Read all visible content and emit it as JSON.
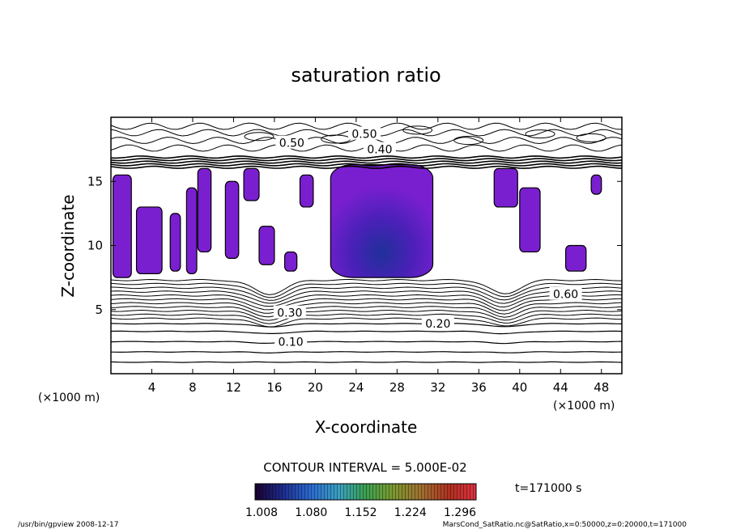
{
  "chart_data": {
    "type": "contour",
    "title": "saturation ratio",
    "xlabel": "X-coordinate",
    "ylabel": "Z-coordinate",
    "x_unit_left": "(×1000 m)",
    "x_unit_right": "(×1000 m)",
    "xlim": [
      0,
      50
    ],
    "ylim": [
      0,
      20
    ],
    "x_ticks": [
      4,
      8,
      12,
      16,
      20,
      24,
      28,
      32,
      36,
      40,
      44,
      48
    ],
    "y_ticks": [
      5,
      10,
      15
    ],
    "contour_interval": "CONTOUR INTERVAL = 5.000E-02",
    "contour_labels": [
      {
        "text": "0.50",
        "x": 24.8,
        "z": 18.7
      },
      {
        "text": "0.50",
        "x": 17.7,
        "z": 18.0
      },
      {
        "text": "0.40",
        "x": 26.3,
        "z": 17.5
      },
      {
        "text": "0.30",
        "x": 17.5,
        "z": 4.75
      },
      {
        "text": "0.20",
        "x": 32.0,
        "z": 3.9
      },
      {
        "text": "0.10",
        "x": 17.6,
        "z": 2.5
      },
      {
        "text": "0.60",
        "x": 44.5,
        "z": 6.2
      }
    ],
    "supersaturated_regions": [
      {
        "x": [
          0.2,
          2.0
        ],
        "z": [
          7.5,
          15.5
        ]
      },
      {
        "x": [
          2.5,
          5.0
        ],
        "z": [
          7.8,
          13.0
        ]
      },
      {
        "x": [
          5.8,
          6.8
        ],
        "z": [
          8.0,
          12.5
        ]
      },
      {
        "x": [
          7.4,
          8.4
        ],
        "z": [
          7.8,
          14.5
        ]
      },
      {
        "x": [
          8.5,
          9.8
        ],
        "z": [
          9.5,
          16.0
        ]
      },
      {
        "x": [
          11.2,
          12.5
        ],
        "z": [
          9.0,
          15.0
        ]
      },
      {
        "x": [
          13.0,
          14.5
        ],
        "z": [
          13.5,
          16.0
        ]
      },
      {
        "x": [
          14.5,
          16.0
        ],
        "z": [
          8.5,
          11.5
        ]
      },
      {
        "x": [
          17.0,
          18.2
        ],
        "z": [
          8.0,
          9.5
        ]
      },
      {
        "x": [
          18.5,
          19.8
        ],
        "z": [
          13.0,
          15.5
        ]
      },
      {
        "x": [
          21.5,
          31.5
        ],
        "z": [
          7.5,
          16.3
        ]
      },
      {
        "x": [
          37.5,
          39.8
        ],
        "z": [
          13.0,
          16.0
        ]
      },
      {
        "x": [
          40.0,
          42.0
        ],
        "z": [
          9.5,
          14.5
        ]
      },
      {
        "x": [
          44.5,
          46.5
        ],
        "z": [
          8.0,
          10.0
        ]
      },
      {
        "x": [
          47.0,
          48.0
        ],
        "z": [
          14.0,
          15.5
        ]
      }
    ],
    "colorbar": {
      "ticks": [
        "1.008",
        "1.080",
        "1.152",
        "1.224",
        "1.296"
      ],
      "colors": [
        "#1a0030",
        "#1c2a8a",
        "#2a6ad0",
        "#3aa0c0",
        "#3aa050",
        "#7a9a30",
        "#a07030",
        "#b03020",
        "#e03040"
      ]
    },
    "time_label": "t=171000 s",
    "fill_colors": {
      "high": "#7a1fd0",
      "center": "#20309a"
    }
  },
  "footer": {
    "left": "/usr/bin/gpview   2008-12-17",
    "right": "MarsCond_SatRatio.nc@SatRatio,x=0:50000,z=0:20000,t=171000"
  }
}
